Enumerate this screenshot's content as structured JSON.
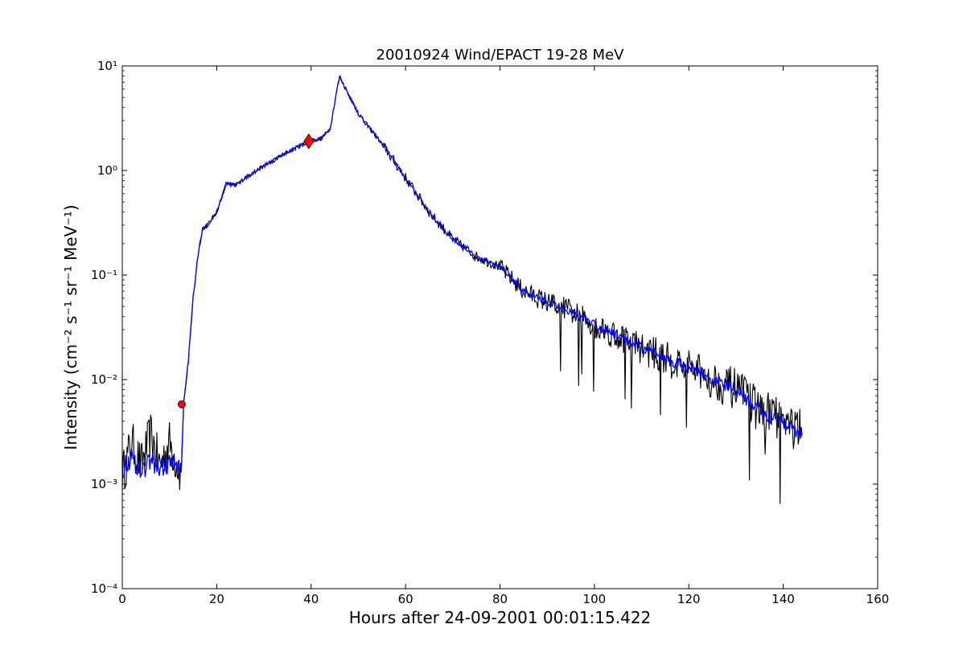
{
  "chart_data": {
    "type": "line",
    "title": "20010924 Wind/EPACT 19-28 MeV",
    "xlabel": "Hours after 24-09-2001 00:01:15.422",
    "ylabel": "Intensity (cm⁻² s⁻¹ sr⁻¹ MeV⁻¹)",
    "yscale": "log",
    "xlim": [
      0,
      160
    ],
    "ylim": [
      0.0001,
      10
    ],
    "grid": false,
    "x_ticks": [
      "0",
      "20",
      "40",
      "60",
      "80",
      "100",
      "120",
      "140",
      "160"
    ],
    "y_ticks": [
      "10⁻⁴",
      "10⁻³",
      "10⁻²",
      "10⁻¹",
      "10⁰",
      "10¹"
    ],
    "series": [
      {
        "color": "#000000",
        "x": [
          0,
          2,
          4,
          6,
          8,
          10,
          12.5,
          13,
          14,
          15,
          16,
          17,
          18,
          20,
          22,
          24,
          26,
          30,
          35,
          39.5,
          42,
          44,
          45.5,
          46,
          47,
          50,
          55,
          60,
          65,
          70,
          75,
          80,
          85,
          90,
          95,
          100,
          105,
          110,
          115,
          120,
          125,
          130,
          135,
          140,
          144
        ],
        "y": [
          0.0012,
          0.0025,
          0.0015,
          0.003,
          0.0015,
          0.0025,
          0.0012,
          0.006,
          0.015,
          0.06,
          0.15,
          0.28,
          0.3,
          0.4,
          0.75,
          0.72,
          0.85,
          1.1,
          1.5,
          1.9,
          2.0,
          2.5,
          6,
          8,
          6.5,
          3.5,
          1.8,
          0.85,
          0.4,
          0.22,
          0.15,
          0.12,
          0.07,
          0.055,
          0.045,
          0.033,
          0.026,
          0.02,
          0.016,
          0.013,
          0.01,
          0.008,
          0.005,
          0.004,
          0.003
        ]
      },
      {
        "color": "#0000ff",
        "x": [
          0,
          2,
          4,
          6,
          8,
          10,
          12.5,
          13,
          14,
          15,
          16,
          17,
          18,
          20,
          22,
          24,
          26,
          30,
          35,
          39.5,
          42,
          44,
          45.5,
          46,
          47,
          50,
          55,
          60,
          65,
          70,
          75,
          80,
          85,
          90,
          95,
          100,
          105,
          110,
          115,
          120,
          125,
          130,
          135,
          140,
          144
        ],
        "y": [
          0.0014,
          0.0018,
          0.0013,
          0.0017,
          0.0014,
          0.0016,
          0.0014,
          0.006,
          0.015,
          0.06,
          0.15,
          0.28,
          0.3,
          0.4,
          0.75,
          0.72,
          0.85,
          1.1,
          1.5,
          1.9,
          2.0,
          2.5,
          6,
          8,
          6.5,
          3.5,
          1.8,
          0.85,
          0.4,
          0.22,
          0.15,
          0.12,
          0.07,
          0.055,
          0.045,
          0.033,
          0.026,
          0.02,
          0.016,
          0.013,
          0.01,
          0.008,
          0.005,
          0.004,
          0.003
        ]
      }
    ],
    "markers": [
      {
        "shape": "circle",
        "color": "#ff0000",
        "x": 12.6,
        "y": 0.0058
      },
      {
        "shape": "diamond",
        "color": "#ff0000",
        "x": 39.5,
        "y": 1.9
      }
    ]
  }
}
